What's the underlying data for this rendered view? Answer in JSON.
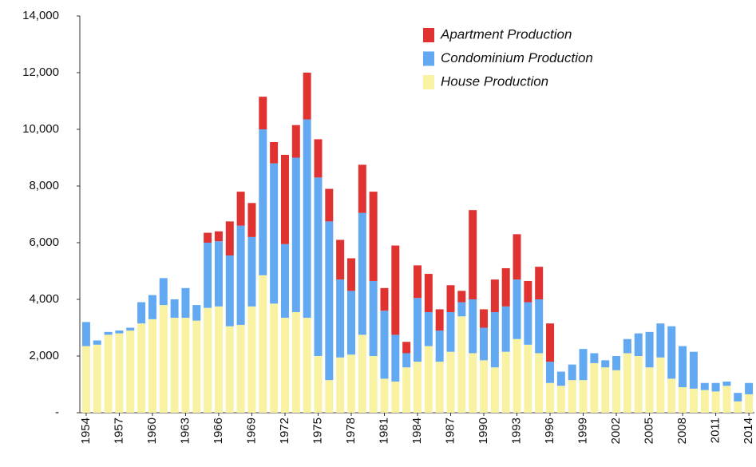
{
  "chart_data": {
    "type": "stacked_bar",
    "categories": [
      "1954",
      null,
      null,
      "1957",
      null,
      null,
      "1960",
      null,
      null,
      "1963",
      null,
      null,
      "1966",
      null,
      null,
      "1969",
      null,
      null,
      "1972",
      null,
      null,
      "1975",
      null,
      null,
      "1978",
      null,
      null,
      "1981",
      null,
      null,
      "1984",
      null,
      null,
      "1987",
      null,
      null,
      "1990",
      null,
      null,
      "1993",
      null,
      null,
      "1996",
      null,
      null,
      "1999",
      null,
      null,
      "2002",
      null,
      null,
      "2005",
      null,
      null,
      "2008",
      null,
      null,
      "2011",
      null,
      null,
      "2014"
    ],
    "series": [
      {
        "name": "Apartment Production",
        "color": "#e13232",
        "values": [
          0,
          0,
          0,
          0,
          0,
          0,
          0,
          0,
          0,
          0,
          0,
          350,
          350,
          1200,
          1200,
          1200,
          1150,
          750,
          3150,
          1150,
          1650,
          1350,
          1150,
          1400,
          1150,
          1700,
          3150,
          800,
          3150,
          400,
          1150,
          1350,
          750,
          950,
          400,
          3150,
          650,
          1150,
          1350,
          1600,
          750,
          1150,
          1350,
          0,
          0,
          0,
          0,
          0,
          0,
          0,
          0,
          0,
          0,
          0,
          0,
          0,
          0,
          0,
          0,
          0,
          0
        ]
      },
      {
        "name": "Condominium Production",
        "color": "#62a9f2",
        "values": [
          850,
          150,
          100,
          100,
          100,
          750,
          850,
          950,
          650,
          1050,
          550,
          2300,
          2300,
          2500,
          3500,
          2450,
          5150,
          4950,
          2600,
          5450,
          7000,
          6300,
          5600,
          2750,
          2250,
          4300,
          2650,
          2400,
          1650,
          500,
          2250,
          1200,
          1100,
          1400,
          500,
          1900,
          1150,
          1950,
          1600,
          2100,
          1500,
          1900,
          750,
          500,
          550,
          1100,
          350,
          250,
          500,
          500,
          800,
          1250,
          1200,
          1850,
          1450,
          1300,
          250,
          300,
          150,
          300,
          400
        ]
      },
      {
        "name": "House Production",
        "color": "#f9f2a2",
        "values": [
          2350,
          2400,
          2750,
          2800,
          2900,
          3150,
          3300,
          3800,
          3350,
          3350,
          3250,
          3700,
          3750,
          3050,
          3100,
          3750,
          4850,
          3850,
          3350,
          3550,
          3350,
          2000,
          1150,
          1950,
          2050,
          2750,
          2000,
          1200,
          1100,
          1600,
          1800,
          2350,
          1800,
          2150,
          3400,
          2100,
          1850,
          1600,
          2150,
          2600,
          2400,
          2100,
          1050,
          950,
          1150,
          1150,
          1750,
          1600,
          1500,
          2100,
          2000,
          1600,
          1950,
          1200,
          900,
          850,
          800,
          750,
          950,
          400,
          650
        ]
      }
    ],
    "ylim": [
      0,
      14000
    ],
    "yticks": [
      {
        "value": 0,
        "label": "-"
      },
      {
        "value": 2000,
        "label": "2,000"
      },
      {
        "value": 4000,
        "label": "4,000"
      },
      {
        "value": 6000,
        "label": "6,000"
      },
      {
        "value": 8000,
        "label": "8,000"
      },
      {
        "value": 10000,
        "label": "10,000"
      },
      {
        "value": 12000,
        "label": "12,000"
      },
      {
        "value": 14000,
        "label": "14,000"
      }
    ],
    "legend": "top-center"
  }
}
